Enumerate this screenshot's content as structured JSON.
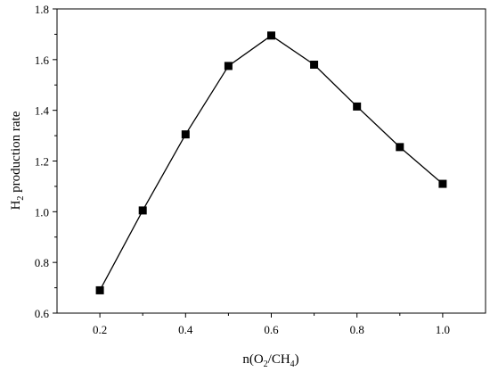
{
  "chart_data": {
    "type": "line",
    "title": "",
    "xlabel": {
      "pre": "n(O",
      "sub1": "2",
      "mid": "/CH",
      "sub2": "4",
      "post": ")"
    },
    "ylabel": {
      "pre": "H",
      "sub": "2",
      "post": " production rate"
    },
    "xlim": [
      0.1,
      1.1
    ],
    "ylim": [
      0.6,
      1.8
    ],
    "xticks": [
      0.2,
      0.4,
      0.6,
      0.8,
      1.0
    ],
    "xtick_labels": [
      "0.2",
      "0.4",
      "0.6",
      "0.8",
      "1.0"
    ],
    "yticks": [
      0.6,
      0.8,
      1.0,
      1.2,
      1.4,
      1.6,
      1.8
    ],
    "ytick_labels": [
      "0.6",
      "0.8",
      "1.0",
      "1.2",
      "1.4",
      "1.6",
      "1.8"
    ],
    "grid": false,
    "marker": "square",
    "series": [
      {
        "x": [
          0.2,
          0.3,
          0.4,
          0.5,
          0.6,
          0.7,
          0.8,
          0.9,
          1.0
        ],
        "y": [
          0.69,
          1.005,
          1.305,
          1.575,
          1.695,
          1.58,
          1.415,
          1.255,
          1.11
        ]
      }
    ],
    "colors": {
      "line": "#000000",
      "marker": "#000000",
      "axis": "#000000"
    }
  }
}
